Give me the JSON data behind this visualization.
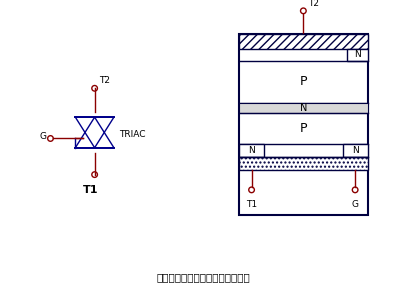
{
  "bg_color": "#ffffff",
  "line_color": "#8b0000",
  "symbol_color": "#00008b",
  "box_edge_color": "#000040",
  "title": "双向可控硅（晶闸管）结构引脚图",
  "title_fontsize": 7.5,
  "triac_label": "TRIAC",
  "t1_label": "T1",
  "t2_label": "T2",
  "g_label": "G",
  "n_label": "N",
  "p_label": "P",
  "figsize": [
    4.06,
    2.89
  ],
  "dpi": 100,
  "xlim": [
    0,
    10
  ],
  "ylim": [
    0,
    7.2
  ]
}
